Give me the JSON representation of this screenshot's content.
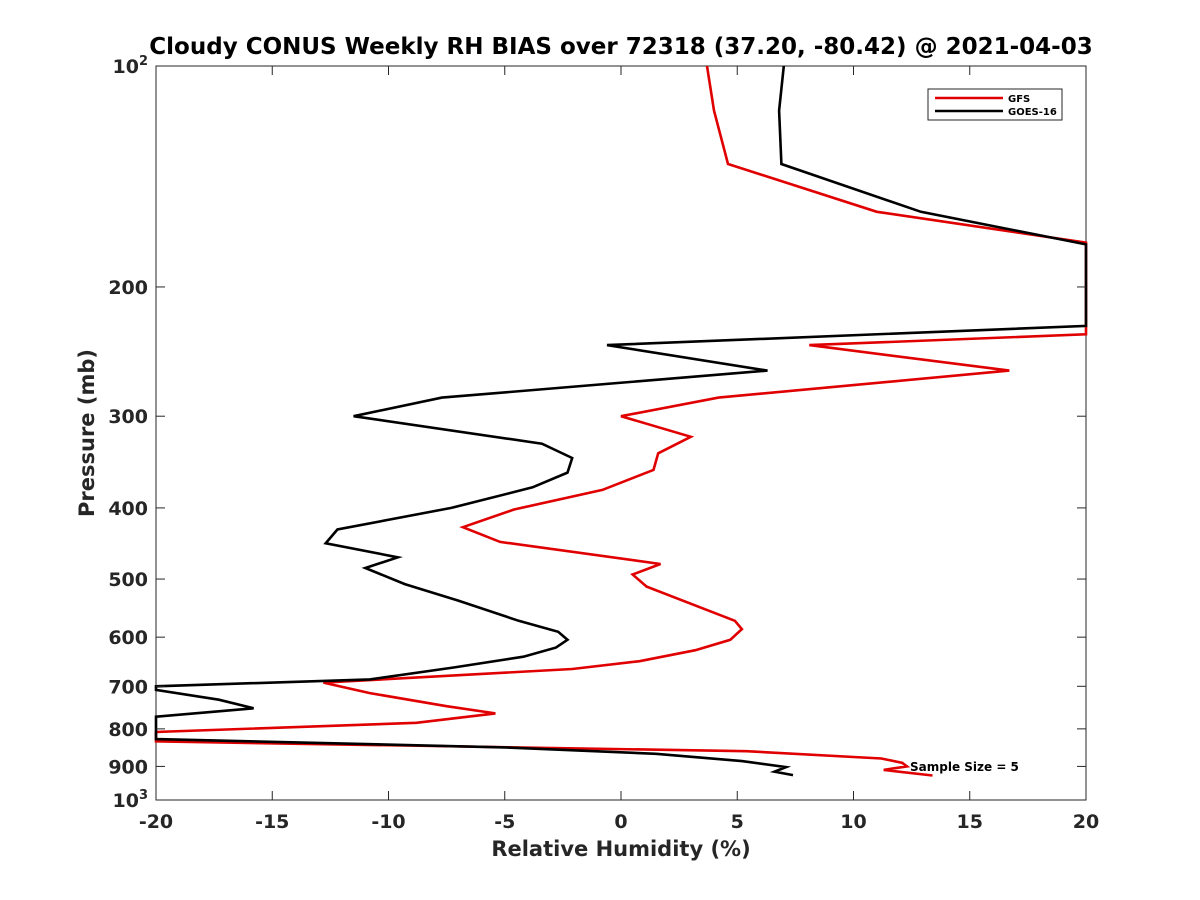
{
  "chart_data": {
    "type": "line",
    "title": "Cloudy CONUS Weekly RH BIAS over 72318 (37.20, -80.42) @ 2021-04-03",
    "xlabel": "Relative Humidity (%)",
    "ylabel": "Pressure (mb)",
    "xlim": [
      -20,
      20
    ],
    "ylim": [
      100,
      1000
    ],
    "yscale": "log",
    "y_reversed": true,
    "x_ticks": [
      -20,
      -15,
      -10,
      -5,
      0,
      5,
      10,
      15,
      20
    ],
    "x_tick_labels": [
      "-20",
      "-15",
      "-10",
      "-5",
      "0",
      "5",
      "10",
      "15",
      "20"
    ],
    "y_ticks": [
      100,
      200,
      300,
      400,
      500,
      600,
      700,
      800,
      900,
      1000
    ],
    "y_tick_labels": [
      {
        "base": "10",
        "exp": "2"
      },
      {
        "base": "200"
      },
      {
        "base": "300"
      },
      {
        "base": "400"
      },
      {
        "base": "500"
      },
      {
        "base": "600"
      },
      {
        "base": "700"
      },
      {
        "base": "800"
      },
      {
        "base": "900"
      },
      {
        "base": "10",
        "exp": "3"
      }
    ],
    "grid": false,
    "legend_position": "top-right",
    "annotation": "Sample Size = 5",
    "series": [
      {
        "name": "GFS",
        "color": "#e00000",
        "points": [
          [
            3.7,
            100
          ],
          [
            4.0,
            115
          ],
          [
            4.6,
            136
          ],
          [
            11.0,
            158
          ],
          [
            20.0,
            174
          ],
          [
            20.0,
            232
          ],
          [
            8.1,
            240
          ],
          [
            16.7,
            260
          ],
          [
            4.2,
            283
          ],
          [
            0.0,
            300
          ],
          [
            3.0,
            320
          ],
          [
            1.6,
            337
          ],
          [
            1.4,
            355
          ],
          [
            -0.8,
            378
          ],
          [
            -4.6,
            402
          ],
          [
            -6.8,
            425
          ],
          [
            -5.2,
            445
          ],
          [
            1.7,
            477
          ],
          [
            0.5,
            493
          ],
          [
            1.1,
            512
          ],
          [
            4.9,
            570
          ],
          [
            5.2,
            585
          ],
          [
            4.7,
            605
          ],
          [
            3.2,
            625
          ],
          [
            0.8,
            647
          ],
          [
            -2.1,
            663
          ],
          [
            -12.8,
            692
          ],
          [
            -10.8,
            715
          ],
          [
            -7.5,
            745
          ],
          [
            -5.4,
            762
          ],
          [
            -8.8,
            785
          ],
          [
            -20.0,
            808
          ],
          [
            -20.0,
            832
          ],
          [
            5.4,
            858
          ],
          [
            11.2,
            878
          ],
          [
            12.1,
            890
          ],
          [
            12.3,
            900
          ],
          [
            11.3,
            910
          ],
          [
            13.4,
            926
          ]
        ]
      },
      {
        "name": "GOES-16",
        "color": "#000000",
        "points": [
          [
            7.0,
            100
          ],
          [
            6.8,
            115
          ],
          [
            6.9,
            136
          ],
          [
            12.9,
            158
          ],
          [
            20.0,
            175
          ],
          [
            20.0,
            226
          ],
          [
            -0.6,
            240
          ],
          [
            6.3,
            260
          ],
          [
            -7.7,
            283
          ],
          [
            -11.5,
            300
          ],
          [
            -3.4,
            327
          ],
          [
            -2.1,
            342
          ],
          [
            -2.3,
            358
          ],
          [
            -3.8,
            375
          ],
          [
            -7.3,
            400
          ],
          [
            -12.2,
            428
          ],
          [
            -12.7,
            447
          ],
          [
            -9.6,
            467
          ],
          [
            -11.0,
            483
          ],
          [
            -9.3,
            508
          ],
          [
            -7.0,
            535
          ],
          [
            -4.4,
            570
          ],
          [
            -2.7,
            590
          ],
          [
            -2.3,
            605
          ],
          [
            -2.8,
            620
          ],
          [
            -4.2,
            638
          ],
          [
            -7.2,
            660
          ],
          [
            -10.8,
            685
          ],
          [
            -20.0,
            700
          ],
          [
            -20.0,
            708
          ],
          [
            -17.3,
            730
          ],
          [
            -15.8,
            750
          ],
          [
            -20.0,
            770
          ],
          [
            -20.0,
            826
          ],
          [
            -5.0,
            848
          ],
          [
            1.5,
            865
          ],
          [
            5.2,
            885
          ],
          [
            7.1,
            902
          ],
          [
            6.6,
            915
          ],
          [
            7.4,
            925
          ]
        ]
      }
    ]
  }
}
